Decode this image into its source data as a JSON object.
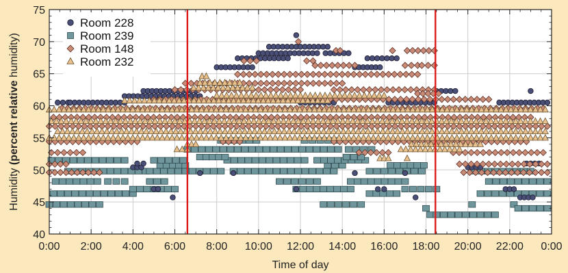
{
  "chart_data": {
    "type": "scatter",
    "xlabel": "Time of day",
    "ylabel_prefix": "Humidity ",
    "ylabel_bold": "(percent relative ",
    "ylabel_word": "humidity",
    "ylabel_suffix": ")",
    "xlim": [
      0,
      24
    ],
    "ylim": [
      40,
      75
    ],
    "x_ticks": [
      "0:00",
      "2:00",
      "4:00",
      "6:00",
      "8:00",
      "10:00",
      "12:00",
      "14:00",
      "16:00",
      "18:00",
      "20:00",
      "22:00",
      "0:00"
    ],
    "y_ticks": [
      40,
      45,
      50,
      55,
      60,
      65,
      70,
      75
    ],
    "grid": true,
    "legend_position": "top-left",
    "markers": {
      "vertical_lines_hours": [
        6.6,
        18.45
      ]
    },
    "series": [
      {
        "name": "Room 228",
        "marker": "circle",
        "color": "#4a4f78",
        "bands": [
          {
            "y": 60.5,
            "x": [
              [
                0.4,
                0.9
              ],
              [
                1.0,
                3.6
              ],
              [
                12.0,
                13.6
              ],
              [
                16.2,
                18.4
              ],
              [
                21.5,
                23.8
              ]
            ]
          },
          {
            "y": 61.5,
            "x": [
              [
                3.6,
                7.2
              ]
            ]
          },
          {
            "y": 62.3,
            "x": [
              [
                4.5,
                7.0
              ],
              [
                18.5,
                19.4
              ],
              [
                23.0,
                23.0
              ]
            ]
          },
          {
            "y": 66.0,
            "x": [
              [
                8.0,
                9.7
              ],
              [
                14.6,
                15.8
              ]
            ]
          },
          {
            "y": 67.4,
            "x": [
              [
                9.0,
                11.4
              ],
              [
                15.2,
                16.6
              ]
            ]
          },
          {
            "y": 68.2,
            "x": [
              [
                10.0,
                12.8
              ],
              [
                13.2,
                14.3
              ]
            ]
          },
          {
            "y": 69.2,
            "x": [
              [
                10.5,
                11.8
              ],
              [
                12.0,
                13.3
              ]
            ]
          },
          {
            "y": 71.0,
            "x": [
              [
                11.8,
                11.8
              ]
            ]
          },
          {
            "y": 50.4,
            "x": [
              [
                4.0,
                4.4
              ],
              [
                20.0,
                20.6
              ]
            ]
          },
          {
            "y": 49.5,
            "x": [
              [
                7.2,
                7.2
              ],
              [
                8.8,
                8.8
              ],
              [
                14.6,
                14.6
              ],
              [
                17.0,
                17.0
              ]
            ]
          },
          {
            "y": 47.0,
            "x": [
              [
                5.0,
                5.2
              ],
              [
                11.8,
                11.8
              ],
              [
                15.7,
                16.0
              ],
              [
                21.8,
                22.2
              ]
            ]
          },
          {
            "y": 45.7,
            "x": [
              [
                5.9,
                5.9
              ],
              [
                17.5,
                17.5
              ],
              [
                22.5,
                23.1
              ]
            ]
          },
          {
            "y": 51.0,
            "x": [
              [
                4.2,
                4.5
              ],
              [
                22.8,
                23.4
              ]
            ]
          }
        ]
      },
      {
        "name": "Room 239",
        "marker": "square",
        "color": "#6e969c",
        "bands": [
          {
            "y": 44.6,
            "x": [
              [
                0.0,
                2.4
              ],
              [
                13.1,
                14.9
              ],
              [
                20.2,
                20.2
              ],
              [
                22.2,
                22.2
              ]
            ]
          },
          {
            "y": 44.0,
            "x": [
              [
                18.0,
                18.0
              ],
              [
                22.4,
                23.8
              ]
            ]
          },
          {
            "y": 43.0,
            "x": [
              [
                18.2,
                18.2
              ],
              [
                18.5,
                21.3
              ]
            ]
          },
          {
            "y": 46.3,
            "x": [
              [
                0.2,
                4.0
              ],
              [
                15.3,
                16.6
              ],
              [
                20.6,
                23.8
              ]
            ]
          },
          {
            "y": 47.0,
            "x": [
              [
                4.0,
                6.0
              ],
              [
                11.8,
                14.4
              ],
              [
                17.0,
                18.5
              ]
            ]
          },
          {
            "y": 48.2,
            "x": [
              [
                0.3,
                2.3
              ],
              [
                2.8,
                3.6
              ],
              [
                4.8,
                5.5
              ],
              [
                11.0,
                12.8
              ],
              [
                14.4,
                17.0
              ],
              [
                21.0,
                23.8
              ]
            ]
          },
          {
            "y": 49.8,
            "x": [
              [
                0.9,
                4.6
              ],
              [
                4.8,
                8.2
              ],
              [
                8.8,
                13.6
              ],
              [
                15.3,
                17.8
              ],
              [
                20.3,
                23.0
              ]
            ]
          },
          {
            "y": 50.7,
            "x": [
              [
                5.3,
                6.5
              ],
              [
                13.3,
                14.0
              ],
              [
                16.3,
                17.9
              ]
            ]
          },
          {
            "y": 51.5,
            "x": [
              [
                0.1,
                3.6
              ],
              [
                5.0,
                6.4
              ],
              [
                8.5,
                12.2
              ],
              [
                12.8,
                15.1
              ]
            ]
          },
          {
            "y": 52.0,
            "x": [
              [
                7.2,
                8.4
              ],
              [
                14.2,
                14.9
              ]
            ]
          },
          {
            "y": 53.2,
            "x": [
              [
                6.6,
                13.8
              ],
              [
                14.3,
                15.4
              ]
            ]
          },
          {
            "y": 54.6,
            "x": [
              [
                8.2,
                9.9
              ],
              [
                12.2,
                13.7
              ]
            ]
          }
        ]
      },
      {
        "name": "Room 148",
        "marker": "diamond",
        "color": "#c98a76",
        "bands": [
          {
            "y": 49.6,
            "x": [
              [
                0.0,
                2.4
              ],
              [
                19.8,
                23.8
              ]
            ]
          },
          {
            "y": 50.9,
            "x": [
              [
                0.0,
                0.8
              ],
              [
                19.6,
                23.8
              ]
            ]
          },
          {
            "y": 52.7,
            "x": [
              [
                0.1,
                1.6
              ],
              [
                14.8,
                16.2
              ],
              [
                19.3,
                23.6
              ]
            ]
          },
          {
            "y": 54.4,
            "x": [
              [
                0.0,
                4.2
              ],
              [
                8.3,
                9.1
              ],
              [
                13.6,
                22.8
              ]
            ]
          },
          {
            "y": 56.8,
            "x": [
              [
                0.0,
                23.8
              ]
            ]
          },
          {
            "y": 58.2,
            "x": [
              [
                0.2,
                23.0
              ]
            ]
          },
          {
            "y": 59.6,
            "x": [
              [
                0.6,
                23.6
              ]
            ]
          },
          {
            "y": 61.0,
            "x": [
              [
                5.0,
                21.0
              ]
            ]
          },
          {
            "y": 62.5,
            "x": [
              [
                6.0,
                12.0
              ],
              [
                13.6,
                18.4
              ]
            ]
          },
          {
            "y": 63.5,
            "x": [
              [
                6.5,
                14.0
              ]
            ]
          },
          {
            "y": 64.9,
            "x": [
              [
                9.0,
                17.6
              ]
            ]
          },
          {
            "y": 66.3,
            "x": [
              [
                12.7,
                14.6
              ],
              [
                17.0,
                17.6
              ],
              [
                17.8,
                18.4
              ]
            ]
          },
          {
            "y": 67.0,
            "x": [
              [
                9.3,
                9.9
              ],
              [
                12.3,
                12.6
              ]
            ]
          },
          {
            "y": 68.6,
            "x": [
              [
                13.7,
                13.9
              ],
              [
                16.4,
                16.4
              ],
              [
                17.1,
                18.4
              ]
            ]
          },
          {
            "y": 70.0,
            "x": [
              [
                11.9,
                11.9
              ]
            ]
          },
          {
            "y": 61.9,
            "x": [
              [
                17.6,
                18.6
              ]
            ]
          }
        ]
      },
      {
        "name": "Room 232",
        "marker": "triangle",
        "color": "#e9c18f",
        "bands": [
          {
            "y": 59.4,
            "x": [
              [
                0.0,
                23.7
              ]
            ]
          },
          {
            "y": 57.6,
            "x": [
              [
                0.1,
                23.7
              ]
            ]
          },
          {
            "y": 56.0,
            "x": [
              [
                0.4,
                23.7
              ]
            ]
          },
          {
            "y": 55.0,
            "x": [
              [
                0.0,
                23.7
              ]
            ]
          },
          {
            "y": 54.0,
            "x": [
              [
                6.6,
                7.0
              ],
              [
                17.3,
                20.6
              ]
            ]
          },
          {
            "y": 53.2,
            "x": [
              [
                6.1,
                6.6
              ],
              [
                16.8,
                19.6
              ]
            ]
          },
          {
            "y": 51.8,
            "x": [
              [
                15.8,
                16.2
              ],
              [
                17.1,
                17.1
              ]
            ]
          },
          {
            "y": 60.8,
            "x": [
              [
                3.6,
                13.3
              ]
            ]
          },
          {
            "y": 61.6,
            "x": [
              [
                8.0,
                16.0
              ]
            ]
          },
          {
            "y": 62.8,
            "x": [
              [
                6.9,
                9.7
              ]
            ]
          },
          {
            "y": 63.6,
            "x": [
              [
                7.2,
                9.1
              ]
            ]
          },
          {
            "y": 64.6,
            "x": [
              [
                7.3,
                7.5
              ]
            ]
          }
        ]
      }
    ]
  },
  "colors": {
    "background": "#fbe8bd",
    "plot_area": "#ffffff",
    "grid": "#cccccc",
    "vertical_marker": "#dd1a1a"
  }
}
